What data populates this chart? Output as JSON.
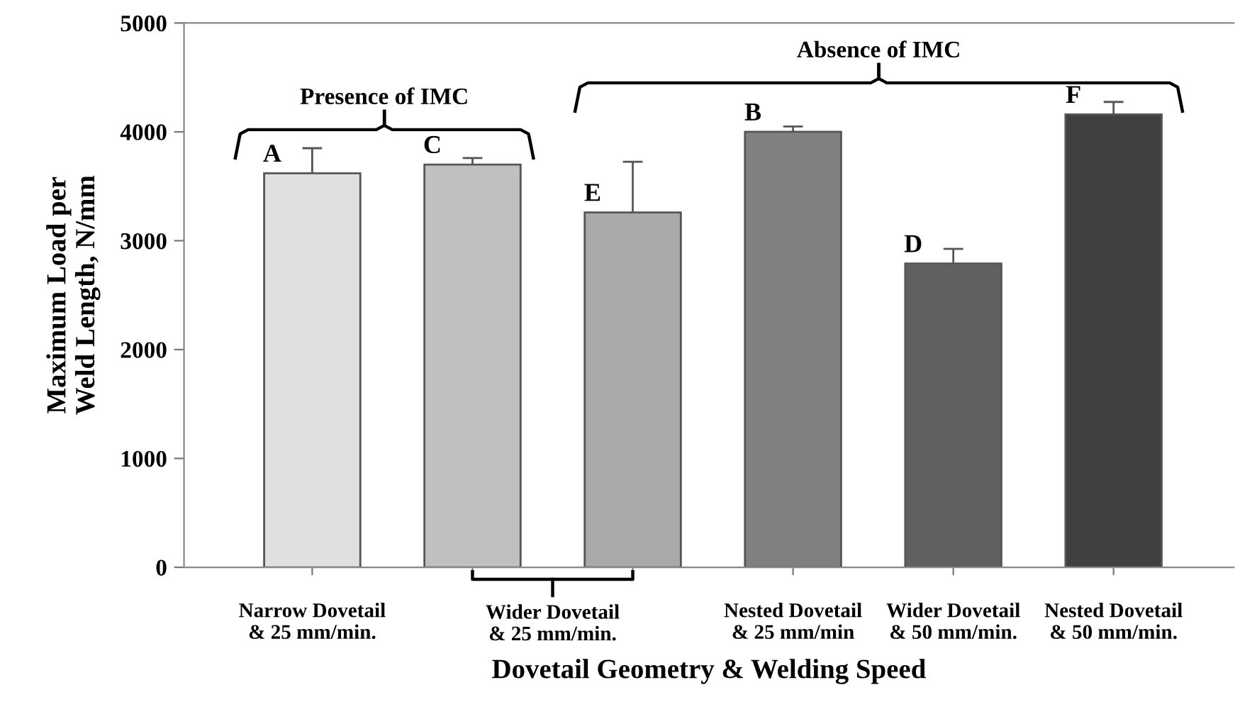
{
  "chart_data": {
    "type": "bar",
    "xlabel": "Dovetail Geometry & Welding Speed",
    "ylabel": "Maximum Load per\nWeld Length, N/mm",
    "categories": [
      "Narrow Dovetail\n& 25 mm/min.",
      null,
      null,
      "Nested Dovetail\n& 25 mm/min",
      "Wider Dovetail\n& 50 mm/min.",
      "Nested Dovetail\n& 50 mm/min."
    ],
    "values": [
      3620,
      3700,
      3260,
      4000,
      2790,
      4160
    ],
    "colors": [
      "#e0e0e0",
      "#c0c0c0",
      "#a9a9a9",
      "#808080",
      "#606060",
      "#404040"
    ],
    "errors": [
      230,
      60,
      465,
      50,
      135,
      115
    ],
    "value_labels": [
      "A",
      "C",
      "E",
      "B",
      "D",
      "F"
    ],
    "annotations": [
      "Presence of IMC",
      "Absence of IMC",
      "Wider Dovetail\n& 25 mm/min."
    ],
    "ylim": [
      0,
      5000
    ],
    "yticks": [
      0,
      1000,
      2000,
      3000,
      4000,
      5000
    ],
    "grid": false,
    "legend": false
  }
}
